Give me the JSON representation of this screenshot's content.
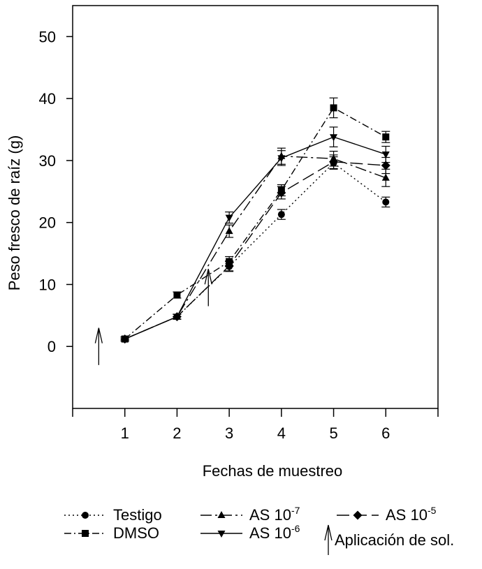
{
  "chart_data": {
    "type": "line",
    "title": "",
    "xlabel": "Fechas de muestreo",
    "ylabel": "Peso fresco de raíz (g)",
    "ylim": [
      -10,
      55
    ],
    "xlim": [
      0,
      7
    ],
    "x_ticks": [
      "1",
      "2",
      "3",
      "4",
      "5",
      "6"
    ],
    "y_ticks": [
      "0",
      "10",
      "20",
      "30",
      "40",
      "50"
    ],
    "x": [
      1,
      2,
      3,
      4,
      5,
      6
    ],
    "grid": false,
    "legend_position": "bottom",
    "series": [
      {
        "name": "Testigo",
        "marker": "circle",
        "dash": "dot",
        "values": [
          1.2,
          4.8,
          12.9,
          21.3,
          29.6,
          23.3
        ],
        "errors": [
          0.3,
          0.4,
          0.8,
          0.8,
          1.0,
          0.8
        ]
      },
      {
        "name": "DMSO",
        "marker": "square",
        "dash": "dashdot",
        "values": [
          1.2,
          8.3,
          13.7,
          25.2,
          38.5,
          33.8
        ],
        "errors": [
          0.3,
          0.5,
          0.8,
          0.9,
          1.6,
          0.9
        ]
      },
      {
        "name": "AS 10",
        "exp": "-7",
        "marker": "triangle-up",
        "dash": "longdashdot",
        "values": [
          1.2,
          4.8,
          18.6,
          30.7,
          30.3,
          27.2
        ],
        "errors": [
          0.3,
          0.4,
          1.0,
          1.3,
          1.2,
          1.4
        ]
      },
      {
        "name": "AS 10",
        "exp": "-6",
        "marker": "triangle-down",
        "dash": "solid",
        "values": [
          1.2,
          4.8,
          20.8,
          30.4,
          33.8,
          31.0
        ],
        "errors": [
          0.3,
          0.4,
          0.9,
          1.2,
          1.6,
          1.3
        ]
      },
      {
        "name": "AS 10",
        "exp": "-5",
        "marker": "diamond",
        "dash": "longdash",
        "values": [
          1.2,
          4.8,
          13.0,
          24.8,
          29.8,
          29.2
        ],
        "errors": [
          0.3,
          0.4,
          0.8,
          1.0,
          1.1,
          1.3
        ]
      }
    ],
    "annotations": [
      {
        "type": "arrow",
        "x": 0.5,
        "y_from": -3,
        "y_to": 3
      },
      {
        "type": "arrow",
        "x": 2.6,
        "y_from": 6.5,
        "y_to": 12.5
      }
    ],
    "arrow_legend_label": "Aplicación de sol."
  }
}
